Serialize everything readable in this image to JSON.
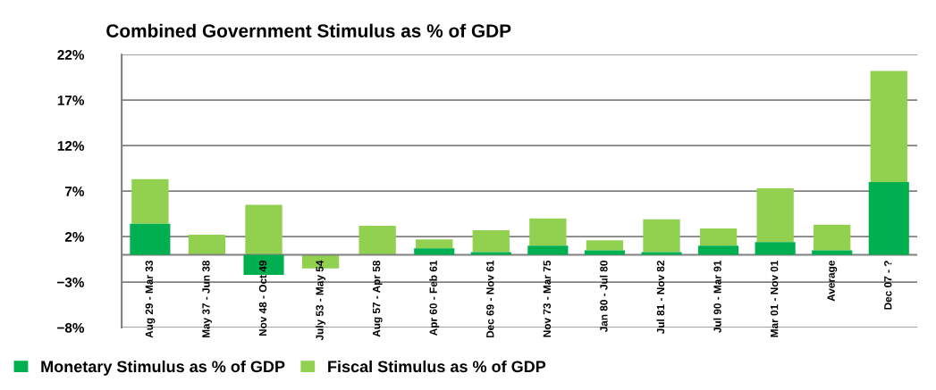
{
  "chart_data": {
    "type": "bar",
    "title": "Combined Government Stimulus as % of GDP",
    "stacked": true,
    "categories": [
      "Aug 29 - Mar 33",
      "May 37 - Jun 38",
      "Nov 48 - Oct 49",
      "July 53 - May 54",
      "Aug 57 - Apr 58",
      "Apr 60 - Feb 61",
      "Dec 69 - Nov 61",
      "Nov 73 - Mar 75",
      "Jan 80 - Jul 80",
      "Jul 81 - Nov 82",
      "Jul 90 - Mar 91",
      "Mar 01 - Nov 01",
      "Average",
      "Dec 07 - ?"
    ],
    "series": [
      {
        "name": "Monetary Stimulus as % of GDP",
        "color": "#00b050",
        "values": [
          3.4,
          0,
          -2.2,
          0,
          0,
          0.7,
          0.3,
          1.0,
          0.5,
          0.3,
          1.0,
          1.4,
          0.5,
          8.0
        ]
      },
      {
        "name": "Fiscal Stimulus as % of GDP",
        "color": "#92d050",
        "values": [
          4.9,
          2.2,
          5.5,
          -1.5,
          3.2,
          1.0,
          2.4,
          3.0,
          1.1,
          3.6,
          1.9,
          5.9,
          2.8,
          12.2
        ]
      }
    ],
    "ylim": [
      -8,
      22
    ],
    "yticks": [
      {
        "value": -8,
        "label": "−8%"
      },
      {
        "value": -3,
        "label": "−3%"
      },
      {
        "value": 2,
        "label": "2%"
      },
      {
        "value": 7,
        "label": "7%"
      },
      {
        "value": 12,
        "label": "12%"
      },
      {
        "value": 17,
        "label": "17%"
      },
      {
        "value": 22,
        "label": "22%"
      }
    ],
    "grid": "y",
    "legend": "bottom"
  }
}
